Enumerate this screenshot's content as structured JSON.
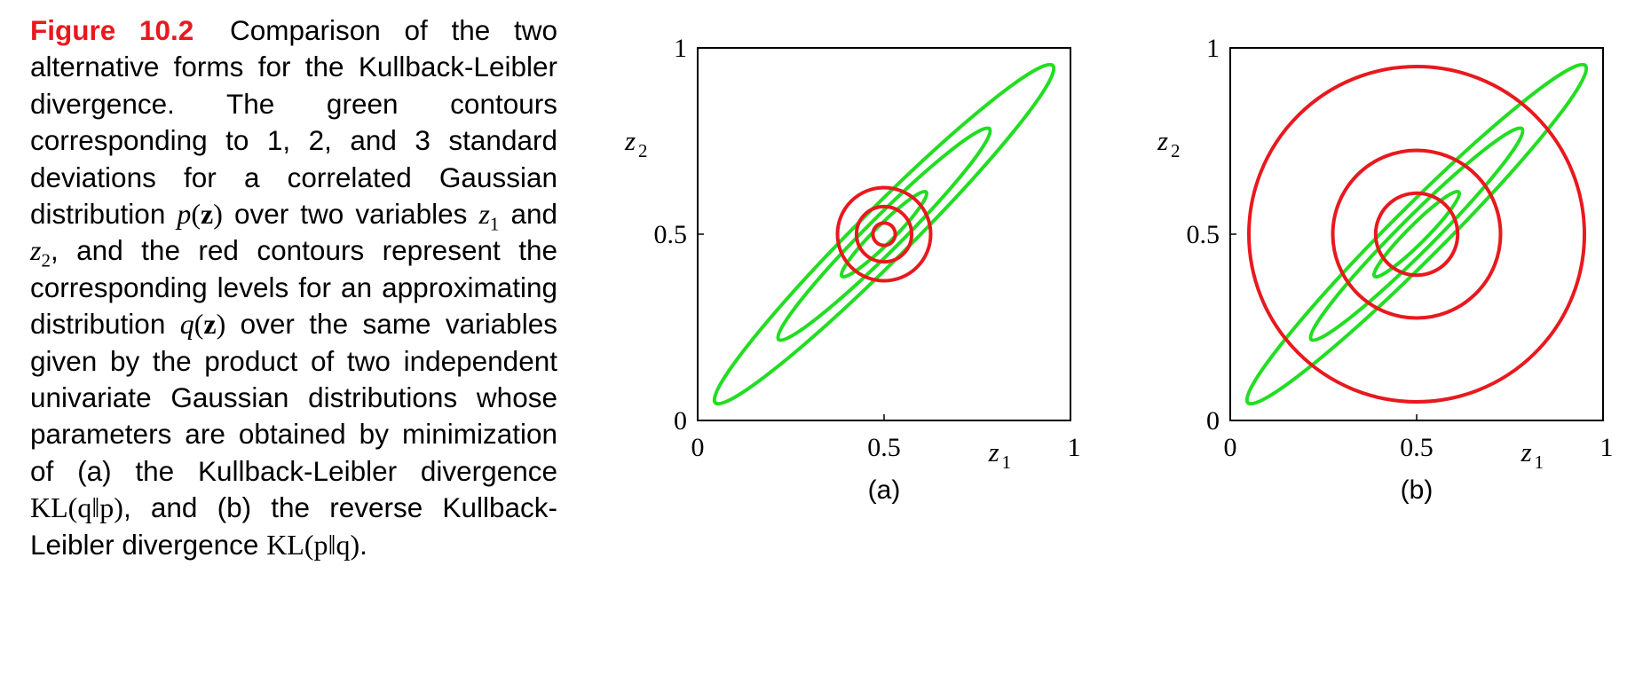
{
  "caption": {
    "label": "Figure 10.2",
    "t1": "Comparison of the two alternative forms for the Kullback-Leibler divergence. The green contours corresponding to 1, 2, and 3 standard deviations for a correlated Gaussian distribution",
    "m_p": "p",
    "m_z": "z",
    "t2": "over two variables",
    "m_z1": "z",
    "sub1": "1",
    "t3": "and",
    "m_z2": "z",
    "sub2": "2",
    "t4": ", and the red contours represent the corresponding levels for an approximating distribution",
    "m_q": "q",
    "t5": "over the same variables given by the product of two independent univariate Gaussian distributions whose parameters are obtained by minimization of (a) the Kullback-Leibler divergence",
    "kl1": "KL(q‖p)",
    "t6": ", and (b) the reverse Kullback-Leibler divergence",
    "kl2": "KL(p‖q)",
    "t7": "."
  },
  "colors": {
    "green": "#22dd22",
    "red": "#e8191e",
    "label_red": "#e8191e"
  },
  "chart_data": [
    {
      "type": "contour",
      "panel_label": "(a)",
      "xlabel": "z",
      "xlabel_sub": "1",
      "ylabel": "z",
      "ylabel_sub": "2",
      "xlim": [
        0,
        1
      ],
      "ylim": [
        0,
        1
      ],
      "xticks": [
        "0",
        "0.5",
        "1"
      ],
      "yticks": [
        "0",
        "0.5",
        "1"
      ],
      "green_ellipses": [
        {
          "cx": 0.5,
          "cy": 0.5,
          "semi_major": 0.64,
          "semi_minor": 0.07,
          "angle_deg": 45
        },
        {
          "cx": 0.5,
          "cy": 0.5,
          "semi_major": 0.4,
          "semi_minor": 0.046,
          "angle_deg": 45
        },
        {
          "cx": 0.5,
          "cy": 0.5,
          "semi_major": 0.16,
          "semi_minor": 0.025,
          "angle_deg": 45
        }
      ],
      "red_circles": [
        {
          "cx": 0.5,
          "cy": 0.5,
          "r": 0.125
        },
        {
          "cx": 0.5,
          "cy": 0.5,
          "r": 0.074
        },
        {
          "cx": 0.5,
          "cy": 0.5,
          "r": 0.03
        }
      ]
    },
    {
      "type": "contour",
      "panel_label": "(b)",
      "xlabel": "z",
      "xlabel_sub": "1",
      "ylabel": "z",
      "ylabel_sub": "2",
      "xlim": [
        0,
        1
      ],
      "ylim": [
        0,
        1
      ],
      "xticks": [
        "0",
        "0.5",
        "1"
      ],
      "yticks": [
        "0",
        "0.5",
        "1"
      ],
      "green_ellipses": [
        {
          "cx": 0.5,
          "cy": 0.5,
          "semi_major": 0.64,
          "semi_minor": 0.07,
          "angle_deg": 45
        },
        {
          "cx": 0.5,
          "cy": 0.5,
          "semi_major": 0.4,
          "semi_minor": 0.046,
          "angle_deg": 45
        },
        {
          "cx": 0.5,
          "cy": 0.5,
          "semi_major": 0.16,
          "semi_minor": 0.025,
          "angle_deg": 45
        }
      ],
      "red_circles": [
        {
          "cx": 0.5,
          "cy": 0.5,
          "r": 0.45
        },
        {
          "cx": 0.5,
          "cy": 0.5,
          "r": 0.225
        },
        {
          "cx": 0.5,
          "cy": 0.5,
          "r": 0.11
        }
      ]
    }
  ]
}
